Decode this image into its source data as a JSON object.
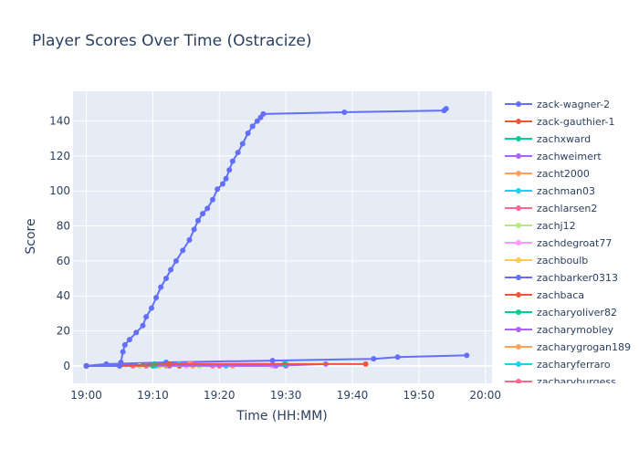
{
  "chart_data": {
    "type": "line",
    "title": "Player Scores Over Time (Ostracize)",
    "xlabel": "Time (HH:MM)",
    "ylabel": "Score",
    "x_unit": "minutes after 19:00",
    "xlim": [
      -2,
      61
    ],
    "ylim": [
      -10,
      157
    ],
    "x_ticks": [
      {
        "value": 0,
        "label": "19:00"
      },
      {
        "value": 10,
        "label": "19:10"
      },
      {
        "value": 20,
        "label": "19:20"
      },
      {
        "value": 30,
        "label": "19:30"
      },
      {
        "value": 40,
        "label": "19:40"
      },
      {
        "value": 50,
        "label": "19:50"
      },
      {
        "value": 60,
        "label": "20:00"
      }
    ],
    "y_ticks": [
      0,
      20,
      40,
      60,
      80,
      100,
      120,
      140
    ],
    "grid": true,
    "legend_position": "right",
    "series": [
      {
        "name": "zack-wagner-2",
        "color": "#636efa",
        "points": [
          [
            0,
            0
          ],
          [
            5,
            0
          ],
          [
            5.2,
            2
          ],
          [
            5.5,
            8
          ],
          [
            5.8,
            12
          ],
          [
            6.5,
            15
          ],
          [
            7.5,
            19
          ],
          [
            8.5,
            23
          ],
          [
            9,
            28
          ],
          [
            9.8,
            33
          ],
          [
            10.5,
            39
          ],
          [
            11.2,
            45
          ],
          [
            12,
            50
          ],
          [
            12.7,
            55
          ],
          [
            13.5,
            60
          ],
          [
            14.5,
            66
          ],
          [
            15.5,
            72
          ],
          [
            16.2,
            78
          ],
          [
            16.8,
            83
          ],
          [
            17.5,
            87
          ],
          [
            18.2,
            90
          ],
          [
            19,
            95
          ],
          [
            19.7,
            101
          ],
          [
            20.5,
            104
          ],
          [
            21,
            107
          ],
          [
            21.5,
            112
          ],
          [
            22,
            117
          ],
          [
            22.8,
            122
          ],
          [
            23.5,
            127
          ],
          [
            24.3,
            133
          ],
          [
            25,
            137
          ],
          [
            25.7,
            140
          ],
          [
            26.2,
            142
          ],
          [
            26.6,
            144
          ],
          [
            38.8,
            145
          ],
          [
            53.8,
            146
          ],
          [
            54.1,
            147
          ]
        ]
      },
      {
        "name": "zack-gauthier-1",
        "color": "#ef553b",
        "points": [
          [
            0,
            0
          ],
          [
            5,
            0
          ],
          [
            12.5,
            1
          ],
          [
            42,
            1
          ]
        ]
      },
      {
        "name": "zachxward",
        "color": "#00cc96",
        "points": [
          [
            0,
            0
          ],
          [
            10,
            0
          ],
          [
            10.2,
            1
          ],
          [
            29.8,
            1
          ]
        ]
      },
      {
        "name": "zachweimert",
        "color": "#ab63fa",
        "points": [
          [
            0,
            0
          ],
          [
            12.5,
            0
          ],
          [
            28.5,
            0
          ],
          [
            36,
            1
          ]
        ]
      },
      {
        "name": "zacht2000",
        "color": "#ffa15a",
        "points": [
          [
            0,
            0
          ],
          [
            12,
            0
          ],
          [
            15.5,
            1
          ],
          [
            22,
            0
          ]
        ]
      },
      {
        "name": "zachman03",
        "color": "#19d3f3",
        "points": [
          [
            0,
            0
          ],
          [
            10.5,
            0
          ],
          [
            14,
            1
          ],
          [
            30,
            1
          ]
        ]
      },
      {
        "name": "zachlarsen2",
        "color": "#ff6692",
        "points": [
          [
            0,
            0
          ],
          [
            9,
            0
          ],
          [
            16,
            1
          ],
          [
            20,
            0
          ]
        ]
      },
      {
        "name": "zachj12",
        "color": "#b6e880",
        "points": [
          [
            0,
            0
          ],
          [
            8,
            0
          ],
          [
            12,
            0
          ],
          [
            17,
            0
          ]
        ]
      },
      {
        "name": "zachdegroat77",
        "color": "#ff97ff",
        "points": [
          [
            0,
            0
          ],
          [
            9,
            0
          ],
          [
            15,
            0
          ],
          [
            28,
            0
          ]
        ]
      },
      {
        "name": "zachboulb",
        "color": "#fecb52",
        "points": [
          [
            0,
            0
          ],
          [
            11,
            0
          ],
          [
            20,
            0
          ]
        ]
      },
      {
        "name": "zachbarker0313",
        "color": "#636efa",
        "points": [
          [
            0,
            0
          ],
          [
            3,
            1
          ],
          [
            12,
            2
          ],
          [
            28,
            3
          ],
          [
            43.2,
            4
          ],
          [
            46.8,
            5
          ],
          [
            57.2,
            6
          ]
        ]
      },
      {
        "name": "zachbaca",
        "color": "#ef553b",
        "points": [
          [
            0,
            0
          ],
          [
            14,
            0
          ],
          [
            28,
            0
          ]
        ]
      },
      {
        "name": "zacharyoliver82",
        "color": "#00cc96",
        "points": [
          [
            0,
            0
          ],
          [
            10.3,
            1
          ],
          [
            12,
            1
          ]
        ]
      },
      {
        "name": "zacharymobley",
        "color": "#ab63fa",
        "points": [
          [
            0,
            0
          ],
          [
            12,
            0
          ],
          [
            30,
            0
          ]
        ]
      },
      {
        "name": "zacharygrogan189",
        "color": "#ffa15a",
        "points": [
          [
            0,
            0
          ],
          [
            8,
            0
          ],
          [
            16,
            0
          ]
        ]
      },
      {
        "name": "zacharyferraro",
        "color": "#19d3f3",
        "points": [
          [
            0,
            0
          ],
          [
            9,
            0
          ],
          [
            21,
            0
          ]
        ]
      },
      {
        "name": "zacharyburgess",
        "color": "#ff6692",
        "points": [
          [
            0,
            0
          ],
          [
            7,
            0
          ],
          [
            19,
            0
          ]
        ]
      }
    ]
  }
}
